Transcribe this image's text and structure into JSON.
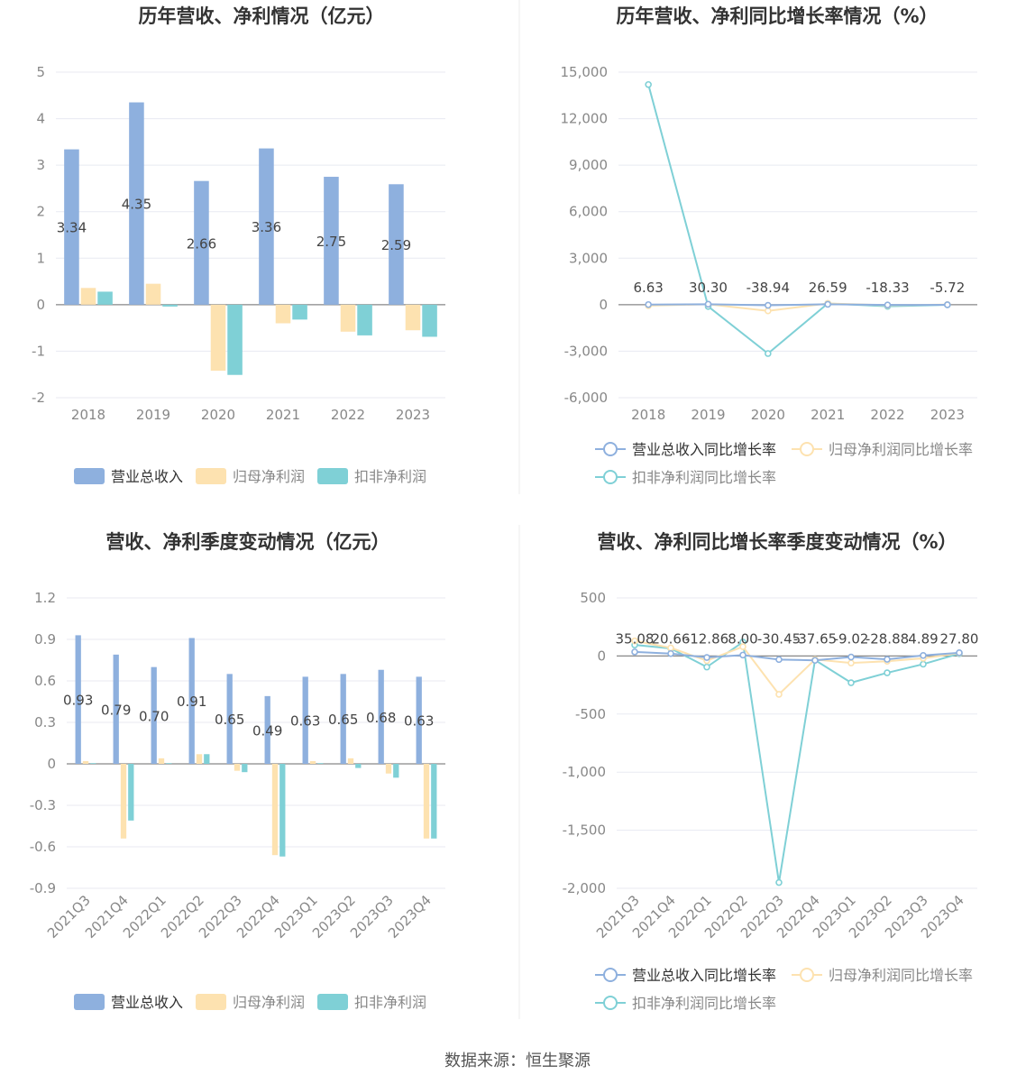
{
  "colors": {
    "revenue": "#8eb0de",
    "net_profit": "#fde2b0",
    "deducted_profit": "#7fd0d6",
    "grid": "#e8eaf2",
    "axis": "#888888",
    "tick_text": "#888888",
    "title": "#333333",
    "label": "#444444"
  },
  "source_label": "数据来源：恒生聚源",
  "chart_data": [
    {
      "type": "bar",
      "title": "历年营收、净利情况（亿元）",
      "categories": [
        "2018",
        "2019",
        "2020",
        "2021",
        "2022",
        "2023"
      ],
      "ylim": [
        -2,
        5
      ],
      "yticks": [
        -2,
        -1,
        0,
        1,
        2,
        3,
        4,
        5
      ],
      "ytick_labels": [
        "-2",
        "-1",
        "0",
        "1",
        "2",
        "3",
        "4",
        "5"
      ],
      "series": [
        {
          "name": "营业总收入",
          "values": [
            3.34,
            4.35,
            2.66,
            3.36,
            2.75,
            2.59
          ],
          "color": "#8eb0de",
          "labels": [
            "3.34",
            "4.35",
            "2.66",
            "3.36",
            "2.75",
            "2.59"
          ]
        },
        {
          "name": "归母净利润",
          "values": [
            0.36,
            0.45,
            -1.42,
            -0.4,
            -0.58,
            -0.55
          ],
          "color": "#fde2b0"
        },
        {
          "name": "扣非净利润",
          "values": [
            0.28,
            -0.04,
            -1.51,
            -0.32,
            -0.66,
            -0.69
          ],
          "color": "#7fd0d6"
        }
      ],
      "legend": "bottom"
    },
    {
      "type": "line",
      "title": "历年营收、净利同比增长率情况（%）",
      "categories": [
        "2018",
        "2019",
        "2020",
        "2021",
        "2022",
        "2023"
      ],
      "ylim": [
        -6000,
        15000
      ],
      "yticks": [
        -6000,
        -3000,
        0,
        3000,
        6000,
        9000,
        12000,
        15000
      ],
      "ytick_labels": [
        "-6,000",
        "-3,000",
        "0",
        "3,000",
        "6,000",
        "9,000",
        "12,000",
        "15,000"
      ],
      "series": [
        {
          "name": "营业总收入同比增长率",
          "values": [
            6.63,
            30.3,
            -38.94,
            26.59,
            -18.33,
            -5.72
          ],
          "color": "#8eb0de",
          "labels": [
            "6.63",
            "30.30",
            "-38.94",
            "26.59",
            "-18.33",
            "-5.72"
          ]
        },
        {
          "name": "归母净利润同比增长率",
          "values": [
            -60,
            25,
            -400,
            80,
            -40,
            5
          ],
          "color": "#fde2b0"
        },
        {
          "name": "扣非净利润同比增长率",
          "values": [
            14200,
            -114,
            -3150,
            79,
            -106,
            -5
          ],
          "color": "#7fd0d6"
        }
      ],
      "legend": "bottom"
    },
    {
      "type": "bar",
      "title": "营收、净利季度变动情况（亿元）",
      "categories": [
        "2021Q3",
        "2021Q4",
        "2022Q1",
        "2022Q2",
        "2022Q3",
        "2022Q4",
        "2023Q1",
        "2023Q2",
        "2023Q3",
        "2023Q4"
      ],
      "ylim": [
        -0.9,
        1.2
      ],
      "yticks": [
        -0.9,
        -0.6,
        -0.3,
        0,
        0.3,
        0.6,
        0.9,
        1.2
      ],
      "ytick_labels": [
        "-0.9",
        "-0.6",
        "-0.3",
        "0",
        "0.3",
        "0.6",
        "0.9",
        "1.2"
      ],
      "series": [
        {
          "name": "营业总收入",
          "values": [
            0.93,
            0.79,
            0.7,
            0.91,
            0.65,
            0.49,
            0.63,
            0.65,
            0.68,
            0.63
          ],
          "color": "#8eb0de",
          "labels": [
            "0.93",
            "0.79",
            "0.70",
            "0.91",
            "0.65",
            "0.49",
            "0.63",
            "0.65",
            "0.68",
            "0.63"
          ]
        },
        {
          "name": "归母净利润",
          "values": [
            0.02,
            -0.54,
            0.04,
            0.07,
            -0.05,
            -0.66,
            0.02,
            0.04,
            -0.07,
            -0.54
          ],
          "color": "#fde2b0"
        },
        {
          "name": "扣非净利润",
          "values": [
            0.005,
            -0.41,
            0.005,
            0.07,
            -0.06,
            -0.67,
            0.005,
            -0.03,
            -0.1,
            -0.54
          ],
          "color": "#7fd0d6"
        }
      ],
      "legend": "bottom"
    },
    {
      "type": "line",
      "title": "营收、净利同比增长率季度变动情况（%）",
      "categories": [
        "2021Q3",
        "2021Q4",
        "2022Q1",
        "2022Q2",
        "2022Q3",
        "2022Q4",
        "2023Q1",
        "2023Q2",
        "2023Q3",
        "2023Q4"
      ],
      "ylim": [
        -2000,
        500
      ],
      "yticks": [
        -2000,
        -1500,
        -1000,
        -500,
        0,
        500
      ],
      "ytick_labels": [
        "-2,000",
        "-1,500",
        "-1,000",
        "-500",
        "0",
        "500"
      ],
      "series": [
        {
          "name": "营业总收入同比增长率",
          "values": [
            35.08,
            20.66,
            -12.86,
            8.0,
            -30.45,
            -37.65,
            -9.02,
            -28.88,
            4.89,
            27.8
          ],
          "color": "#8eb0de",
          "labels": [
            "35.08",
            "20.66",
            "-12.86",
            "8.00",
            "-30.45",
            "-37.65",
            "-9.02",
            "-28.88",
            "4.89",
            "27.80"
          ]
        },
        {
          "name": "归母净利润同比增长率",
          "values": [
            130,
            70,
            -40,
            80,
            -330,
            -30,
            -60,
            -45,
            -20,
            25
          ],
          "color": "#fde2b0"
        },
        {
          "name": "扣非净利润同比增长率",
          "values": [
            95,
            65,
            -95,
            120,
            -1950,
            -35,
            -230,
            -145,
            -70,
            20
          ],
          "color": "#7fd0d6"
        }
      ],
      "legend": "bottom"
    }
  ]
}
